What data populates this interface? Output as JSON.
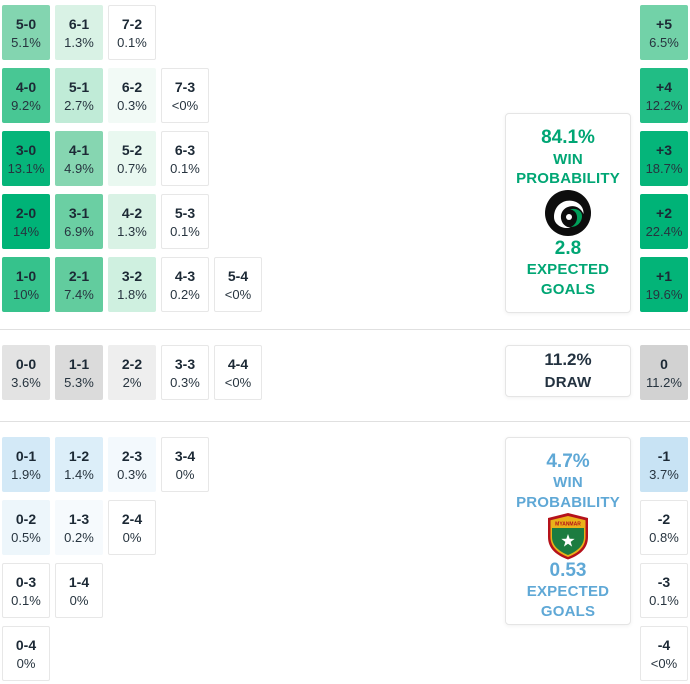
{
  "colors": {
    "green": "#00b377",
    "green_text": "#00a674",
    "blue_text": "#5fa8d6",
    "dark_text": "#233240",
    "draw_gray": "#d2d2d2"
  },
  "panels": {
    "home": {
      "win_pct": "84.1%",
      "win_label": "WIN PROBABILITY",
      "goals": "2.8",
      "goals_label": "EXPECTED GOALS"
    },
    "draw": {
      "pct": "11.2%",
      "label": "DRAW"
    },
    "away": {
      "win_pct": "4.7%",
      "win_label": "WIN PROBABILITY",
      "goals": "0.53",
      "goals_label": "EXPECTED GOALS"
    }
  },
  "logos": {
    "home": "home-team-crest",
    "away": "away-team-crest"
  },
  "grids": {
    "home": [
      [
        {
          "s": "5-0",
          "p": "5.1%",
          "bg": "#83d5b0"
        },
        {
          "s": "6-1",
          "p": "1.3%",
          "bg": "#d9f2e5"
        },
        {
          "s": "7-2",
          "p": "0.1%",
          "bg": "#ffffff"
        }
      ],
      [
        {
          "s": "4-0",
          "p": "9.2%",
          "bg": "#48c794"
        },
        {
          "s": "5-1",
          "p": "2.7%",
          "bg": "#c0ebd7"
        },
        {
          "s": "6-2",
          "p": "0.3%",
          "bg": "#f2faf6"
        },
        {
          "s": "7-3",
          "p": "<0%",
          "bg": "#ffffff"
        }
      ],
      [
        {
          "s": "3-0",
          "p": "13.1%",
          "bg": "#06b57a"
        },
        {
          "s": "4-1",
          "p": "4.9%",
          "bg": "#86d6b1"
        },
        {
          "s": "5-2",
          "p": "0.7%",
          "bg": "#e9f8f0"
        },
        {
          "s": "6-3",
          "p": "0.1%",
          "bg": "#ffffff"
        }
      ],
      [
        {
          "s": "2-0",
          "p": "14%",
          "bg": "#00b377"
        },
        {
          "s": "3-1",
          "p": "6.9%",
          "bg": "#6bcfa3"
        },
        {
          "s": "4-2",
          "p": "1.3%",
          "bg": "#d9f2e5"
        },
        {
          "s": "5-3",
          "p": "0.1%",
          "bg": "#ffffff"
        }
      ],
      [
        {
          "s": "1-0",
          "p": "10%",
          "bg": "#36c28c"
        },
        {
          "s": "2-1",
          "p": "7.4%",
          "bg": "#62cc9e"
        },
        {
          "s": "3-2",
          "p": "1.8%",
          "bg": "#cff0e0"
        },
        {
          "s": "4-3",
          "p": "0.2%",
          "bg": "#ffffff"
        },
        {
          "s": "5-4",
          "p": "<0%",
          "bg": "#ffffff"
        }
      ]
    ],
    "draw": [
      [
        {
          "s": "0-0",
          "p": "3.6%",
          "bg": "#e3e3e3"
        },
        {
          "s": "1-1",
          "p": "5.3%",
          "bg": "#dbdbdb"
        },
        {
          "s": "2-2",
          "p": "2%",
          "bg": "#eeeeee"
        },
        {
          "s": "3-3",
          "p": "0.3%",
          "bg": "#ffffff"
        },
        {
          "s": "4-4",
          "p": "<0%",
          "bg": "#ffffff"
        }
      ]
    ],
    "away": [
      [
        {
          "s": "0-1",
          "p": "1.9%",
          "bg": "#d3e9f7"
        },
        {
          "s": "1-2",
          "p": "1.4%",
          "bg": "#dceef9"
        },
        {
          "s": "2-3",
          "p": "0.3%",
          "bg": "#f3f9fd"
        },
        {
          "s": "3-4",
          "p": "0%",
          "bg": "#ffffff"
        }
      ],
      [
        {
          "s": "0-2",
          "p": "0.5%",
          "bg": "#edf6fb"
        },
        {
          "s": "1-3",
          "p": "0.2%",
          "bg": "#f6fafd"
        },
        {
          "s": "2-4",
          "p": "0%",
          "bg": "#ffffff"
        }
      ],
      [
        {
          "s": "0-3",
          "p": "0.1%",
          "bg": "#ffffff"
        },
        {
          "s": "1-4",
          "p": "0%",
          "bg": "#ffffff"
        }
      ],
      [
        {
          "s": "0-4",
          "p": "0%",
          "bg": "#ffffff"
        }
      ]
    ]
  },
  "diffs": {
    "home": [
      {
        "s": "+5",
        "p": "6.5%",
        "bg": "#72d2a8"
      },
      {
        "s": "+4",
        "p": "12.2%",
        "bg": "#21bd85"
      },
      {
        "s": "+3",
        "p": "18.7%",
        "bg": "#05b57a"
      },
      {
        "s": "+2",
        "p": "22.4%",
        "bg": "#00b377"
      },
      {
        "s": "+1",
        "p": "19.6%",
        "bg": "#03b478"
      }
    ],
    "draw": [
      {
        "s": "0",
        "p": "11.2%",
        "bg": "#d2d2d2"
      }
    ],
    "away": [
      {
        "s": "-1",
        "p": "3.7%",
        "bg": "#c8e3f4"
      },
      {
        "s": "-2",
        "p": "0.8%",
        "bg": "#ffffff"
      },
      {
        "s": "-3",
        "p": "0.1%",
        "bg": "#ffffff"
      },
      {
        "s": "-4",
        "p": "<0%",
        "bg": "#ffffff"
      }
    ]
  },
  "chart_data": {
    "type": "heatmap",
    "title": "Correct score probability matrix with goal-difference distribution",
    "home_team": {
      "win_probability_pct": 84.1,
      "expected_goals": 2.8
    },
    "draw": {
      "probability_pct": 11.2
    },
    "away_team": {
      "win_probability_pct": 4.7,
      "expected_goals": 0.53
    },
    "home_win_scores": [
      {
        "score": "5-0",
        "probability": "5.1%"
      },
      {
        "score": "6-1",
        "probability": "1.3%"
      },
      {
        "score": "7-2",
        "probability": "0.1%"
      },
      {
        "score": "4-0",
        "probability": "9.2%"
      },
      {
        "score": "5-1",
        "probability": "2.7%"
      },
      {
        "score": "6-2",
        "probability": "0.3%"
      },
      {
        "score": "7-3",
        "probability": "<0%"
      },
      {
        "score": "3-0",
        "probability": "13.1%"
      },
      {
        "score": "4-1",
        "probability": "4.9%"
      },
      {
        "score": "5-2",
        "probability": "0.7%"
      },
      {
        "score": "6-3",
        "probability": "0.1%"
      },
      {
        "score": "2-0",
        "probability": "14%"
      },
      {
        "score": "3-1",
        "probability": "6.9%"
      },
      {
        "score": "4-2",
        "probability": "1.3%"
      },
      {
        "score": "5-3",
        "probability": "0.1%"
      },
      {
        "score": "1-0",
        "probability": "10%"
      },
      {
        "score": "2-1",
        "probability": "7.4%"
      },
      {
        "score": "3-2",
        "probability": "1.8%"
      },
      {
        "score": "4-3",
        "probability": "0.2%"
      },
      {
        "score": "5-4",
        "probability": "<0%"
      }
    ],
    "draw_scores": [
      {
        "score": "0-0",
        "probability": "3.6%"
      },
      {
        "score": "1-1",
        "probability": "5.3%"
      },
      {
        "score": "2-2",
        "probability": "2%"
      },
      {
        "score": "3-3",
        "probability": "0.3%"
      },
      {
        "score": "4-4",
        "probability": "<0%"
      }
    ],
    "away_win_scores": [
      {
        "score": "0-1",
        "probability": "1.9%"
      },
      {
        "score": "1-2",
        "probability": "1.4%"
      },
      {
        "score": "2-3",
        "probability": "0.3%"
      },
      {
        "score": "3-4",
        "probability": "0%"
      },
      {
        "score": "0-2",
        "probability": "0.5%"
      },
      {
        "score": "1-3",
        "probability": "0.2%"
      },
      {
        "score": "2-4",
        "probability": "0%"
      },
      {
        "score": "0-3",
        "probability": "0.1%"
      },
      {
        "score": "1-4",
        "probability": "0%"
      },
      {
        "score": "0-4",
        "probability": "0%"
      }
    ],
    "goal_difference_distribution": [
      {
        "diff": "+5",
        "probability": "6.5%"
      },
      {
        "diff": "+4",
        "probability": "12.2%"
      },
      {
        "diff": "+3",
        "probability": "18.7%"
      },
      {
        "diff": "+2",
        "probability": "22.4%"
      },
      {
        "diff": "+1",
        "probability": "19.6%"
      },
      {
        "diff": "0",
        "probability": "11.2%"
      },
      {
        "diff": "-1",
        "probability": "3.7%"
      },
      {
        "diff": "-2",
        "probability": "0.8%"
      },
      {
        "diff": "-3",
        "probability": "0.1%"
      },
      {
        "diff": "-4",
        "probability": "<0%"
      }
    ]
  }
}
